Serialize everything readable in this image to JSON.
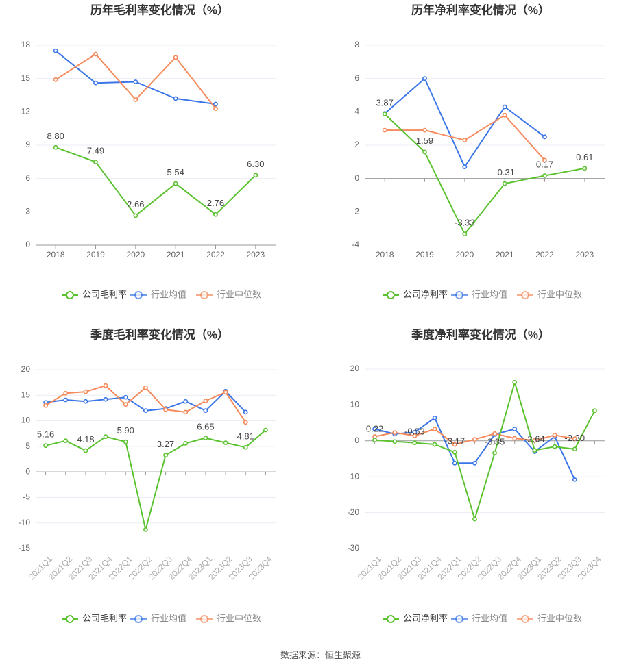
{
  "source": "数据来源：恒生聚源",
  "legend_labels": [
    "公司毛利率",
    "行业均值",
    "行业中位数",
    "公司净利率"
  ],
  "colors": {
    "company": "#5ac22e",
    "avg": "#3b76e8",
    "median": "#f58a5c",
    "axis": "#999999",
    "grid": "#e9eef5",
    "text": "#666666",
    "label": "#444444"
  },
  "chart_data": [
    {
      "type": "line",
      "title": "历年毛利率变化情况（%）",
      "categories": [
        "2018",
        "2019",
        "2020",
        "2021",
        "2022",
        "2023"
      ],
      "ylim": [
        0,
        18
      ],
      "yticks": [
        0,
        3,
        6,
        9,
        12,
        15,
        18
      ],
      "grid": true,
      "legend_position": "bottom",
      "series": [
        {
          "name": "公司毛利率",
          "values": [
            8.8,
            7.49,
            2.66,
            5.54,
            2.76,
            6.3
          ],
          "labels": [
            "8.80",
            "7.49",
            "2.66",
            "5.54",
            "2.76",
            "6.30"
          ]
        },
        {
          "name": "行业均值",
          "values": [
            17.5,
            14.6,
            14.7,
            13.2,
            12.7,
            null
          ]
        },
        {
          "name": "行业中位数",
          "values": [
            14.9,
            17.2,
            13.1,
            16.9,
            12.3,
            null
          ]
        }
      ]
    },
    {
      "type": "line",
      "title": "历年净利率变化情况（%）",
      "categories": [
        "2018",
        "2019",
        "2020",
        "2021",
        "2022",
        "2023"
      ],
      "ylim": [
        -4,
        8
      ],
      "yticks": [
        -4,
        -2,
        0,
        2,
        4,
        6,
        8
      ],
      "grid": true,
      "legend_position": "bottom",
      "series": [
        {
          "name": "公司净利率",
          "values": [
            3.87,
            1.59,
            -3.33,
            -0.31,
            0.17,
            0.61
          ],
          "labels": [
            "3.87",
            "1.59",
            "-3.33",
            "-0.31",
            "0.17",
            "0.61"
          ]
        },
        {
          "name": "行业均值",
          "values": [
            3.9,
            6.0,
            0.7,
            4.3,
            2.5,
            null
          ]
        },
        {
          "name": "行业中位数",
          "values": [
            2.9,
            2.9,
            2.3,
            3.8,
            1.1,
            null
          ]
        }
      ]
    },
    {
      "type": "line",
      "title": "季度毛利率变化情况（%）",
      "categories": [
        "2021Q1",
        "2021Q2",
        "2021Q3",
        "2021Q4",
        "2022Q1",
        "2022Q2",
        "2022Q3",
        "2022Q4",
        "2023Q1",
        "2023Q2",
        "2023Q3",
        "2023Q4"
      ],
      "ylim": [
        -15,
        20
      ],
      "yticks": [
        -15,
        -10,
        -5,
        0,
        5,
        10,
        15,
        20
      ],
      "grid": true,
      "legend_position": "bottom",
      "series": [
        {
          "name": "公司毛利率",
          "values": [
            5.16,
            6.1,
            4.18,
            6.9,
            5.9,
            -11.3,
            3.27,
            5.6,
            6.65,
            5.7,
            4.81,
            8.2
          ],
          "labels": [
            "5.16",
            "",
            "4.18",
            "",
            "5.90",
            "",
            "3.27",
            "",
            "6.65",
            "",
            "4.81",
            ""
          ]
        },
        {
          "name": "行业均值",
          "values": [
            13.6,
            14.1,
            13.8,
            14.2,
            14.6,
            12.0,
            12.4,
            13.8,
            12.0,
            15.8,
            11.7,
            null
          ]
        },
        {
          "name": "行业中位数",
          "values": [
            13.0,
            15.4,
            15.7,
            16.9,
            13.2,
            16.5,
            12.2,
            11.7,
            13.9,
            15.6,
            9.7,
            null
          ]
        }
      ]
    },
    {
      "type": "line",
      "title": "季度净利率变化情况（%）",
      "categories": [
        "2021Q1",
        "2021Q2",
        "2021Q3",
        "2021Q4",
        "2022Q1",
        "2022Q2",
        "2022Q3",
        "2022Q4",
        "2023Q1",
        "2023Q2",
        "2023Q3",
        "2023Q4"
      ],
      "ylim": [
        -30,
        20
      ],
      "yticks": [
        -30,
        -20,
        -10,
        0,
        10,
        20
      ],
      "grid": true,
      "legend_position": "bottom",
      "series": [
        {
          "name": "公司净利率",
          "values": [
            0.22,
            -0.2,
            -0.53,
            -1.0,
            -3.17,
            -21.8,
            -3.35,
            16.3,
            -2.64,
            -1.6,
            -2.3,
            8.4
          ],
          "labels": [
            "0.22",
            "",
            "-0.53",
            "",
            "-3.17",
            "",
            "-3.35",
            "",
            "-2.64",
            "",
            "-2.30",
            ""
          ]
        },
        {
          "name": "行业均值",
          "values": [
            3.3,
            1.9,
            2.4,
            6.4,
            -6.2,
            -6.2,
            1.8,
            3.3,
            -3.0,
            1.2,
            -10.8,
            null
          ]
        },
        {
          "name": "行业中位数",
          "values": [
            1.2,
            2.3,
            1.4,
            3.3,
            -1.0,
            0.4,
            2.0,
            0.7,
            0.1,
            1.6,
            0.6,
            null
          ]
        }
      ]
    }
  ]
}
